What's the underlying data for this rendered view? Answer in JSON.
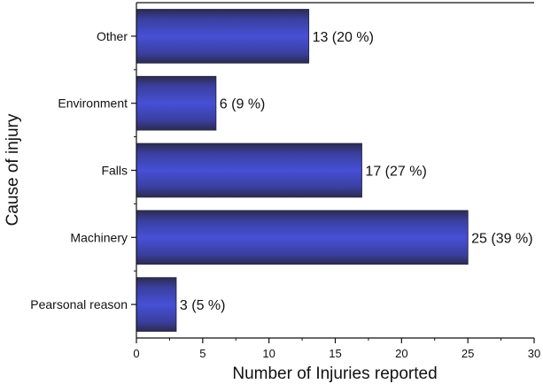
{
  "chart_data": {
    "type": "bar",
    "orientation": "horizontal",
    "categories": [
      "Other",
      "Environment",
      "Falls",
      "Machinery",
      "Pearsonal reason"
    ],
    "values": [
      13,
      6,
      17,
      25,
      3
    ],
    "data_labels": [
      "13 (20 %)",
      "6 (9 %)",
      "17 (27 %)",
      "25 (39 %)",
      "3 (5 %)"
    ],
    "xlabel": "Number of Injuries reported",
    "ylabel": "Cause of injury",
    "xlim": [
      0,
      30
    ],
    "xticks": [
      "0",
      "5",
      "10",
      "15",
      "20",
      "25",
      "30"
    ],
    "grid": false,
    "bar_color": "#3f46c4",
    "bar_edge_color": "#2a2a48"
  }
}
